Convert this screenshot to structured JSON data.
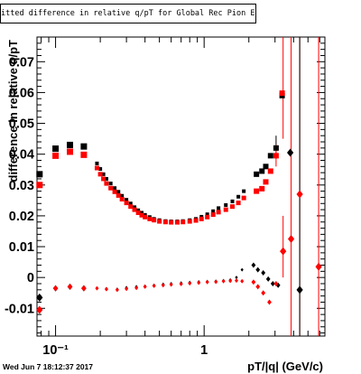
{
  "chart_data": {
    "type": "scatter",
    "title": "itted difference in relative q/pT  for Global Rec Pion EtapT",
    "xlabel": "pT/|q| (GeV/c)",
    "ylabel": "difference in relative q/pT",
    "x_scale": "log",
    "xlim": [
      0.075,
      6.5
    ],
    "ylim": [
      -0.019,
      0.078
    ],
    "x_ticks": [
      {
        "v": 0.1,
        "label": "10⁻¹"
      },
      {
        "v": 1,
        "label": "1"
      }
    ],
    "y_ticks": [
      -0.01,
      0,
      0.01,
      0.02,
      0.03,
      0.04,
      0.05,
      0.06,
      0.07
    ],
    "y_tick_labels": [
      "-0.01",
      "0",
      "0.01",
      "0.02",
      "0.03",
      "0.04",
      "0.05",
      "0.06",
      "0.07"
    ],
    "grid": false,
    "series": [
      {
        "color": "#000000",
        "marker": "square",
        "size": 7,
        "points": [
          [
            0.078,
            0.0335
          ],
          [
            0.1,
            0.0418
          ],
          [
            0.125,
            0.043
          ],
          [
            0.155,
            0.0425
          ]
        ]
      },
      {
        "color": "#000000",
        "marker": "square",
        "size": 4,
        "points": [
          [
            0.19,
            0.037
          ],
          [
            0.2,
            0.0352
          ],
          [
            0.21,
            0.0335
          ],
          [
            0.22,
            0.032
          ],
          [
            0.235,
            0.0305
          ],
          [
            0.25,
            0.029
          ],
          [
            0.265,
            0.0278
          ],
          [
            0.28,
            0.0265
          ],
          [
            0.3,
            0.0252
          ],
          [
            0.32,
            0.024
          ],
          [
            0.34,
            0.0228
          ],
          [
            0.36,
            0.0218
          ],
          [
            0.38,
            0.021
          ],
          [
            0.4,
            0.0203
          ],
          [
            0.43,
            0.0196
          ],
          [
            0.46,
            0.019
          ],
          [
            0.5,
            0.0186
          ],
          [
            0.55,
            0.0183
          ],
          [
            0.6,
            0.0182
          ],
          [
            0.66,
            0.0182
          ],
          [
            0.72,
            0.0183
          ],
          [
            0.8,
            0.0186
          ],
          [
            0.88,
            0.019
          ],
          [
            0.96,
            0.0197
          ],
          [
            1.05,
            0.0205
          ],
          [
            1.15,
            0.0215
          ],
          [
            1.25,
            0.0225
          ],
          [
            1.4,
            0.0235
          ],
          [
            1.55,
            0.0247
          ],
          [
            1.7,
            0.0262
          ],
          [
            1.85,
            0.028
          ]
        ]
      },
      {
        "color": "#000000",
        "marker": "square",
        "size": 6,
        "points": [
          [
            2.25,
            0.0335
          ],
          [
            2.45,
            0.0345
          ],
          [
            2.6,
            0.036
          ],
          [
            2.8,
            0.0395
          ],
          [
            3.05,
            0.042
          ],
          [
            3.35,
            0.059
          ]
        ]
      },
      {
        "color": "#000000",
        "marker": "diamond",
        "size": 9,
        "points": [
          [
            0.078,
            -0.0065
          ],
          [
            3.8,
            0.0405
          ],
          [
            4.4,
            -0.004
          ]
        ]
      },
      {
        "color": "#000000",
        "marker": "diamond",
        "size": 7,
        "points": [
          [
            0.1,
            -0.0035
          ],
          [
            0.125,
            -0.003
          ],
          [
            0.155,
            -0.0035
          ]
        ]
      },
      {
        "color": "#000000",
        "marker": "diamond",
        "size": 4,
        "points": [
          [
            0.19,
            -0.0035
          ],
          [
            0.22,
            -0.0036
          ],
          [
            0.26,
            -0.0038
          ],
          [
            0.3,
            -0.0033
          ],
          [
            0.35,
            -0.003
          ],
          [
            0.4,
            -0.0028
          ],
          [
            0.46,
            -0.0025
          ],
          [
            0.53,
            -0.0022
          ],
          [
            0.6,
            -0.002
          ],
          [
            0.7,
            -0.0018
          ],
          [
            0.8,
            -0.0016
          ],
          [
            0.92,
            -0.0014
          ],
          [
            1.05,
            -0.0013
          ],
          [
            1.2,
            -0.0012
          ],
          [
            1.35,
            -0.001
          ],
          [
            1.5,
            -0.0008
          ],
          [
            1.65,
            0
          ],
          [
            1.8,
            0.0025
          ]
        ]
      },
      {
        "color": "#000000",
        "marker": "diamond",
        "size": 6,
        "points": [
          [
            2.15,
            0.004
          ],
          [
            2.3,
            0.0025
          ],
          [
            2.5,
            0.0015
          ],
          [
            2.7,
            -0.0005
          ],
          [
            2.9,
            -0.002
          ],
          [
            3.15,
            -0.0025
          ],
          [
            3.4,
            0.0085
          ]
        ]
      },
      {
        "color": "#ff0000",
        "marker": "square",
        "size": 7,
        "points": [
          [
            0.078,
            0.03
          ],
          [
            0.1,
            0.0395
          ],
          [
            0.125,
            0.0408
          ],
          [
            0.155,
            0.0398
          ]
        ]
      },
      {
        "color": "#ff0000",
        "marker": "square",
        "size": 5,
        "points": [
          [
            0.19,
            0.0355
          ],
          [
            0.2,
            0.0335
          ],
          [
            0.21,
            0.032
          ],
          [
            0.22,
            0.0305
          ],
          [
            0.235,
            0.029
          ],
          [
            0.25,
            0.0278
          ],
          [
            0.265,
            0.0266
          ],
          [
            0.28,
            0.0254
          ],
          [
            0.3,
            0.0242
          ],
          [
            0.32,
            0.023
          ],
          [
            0.34,
            0.022
          ],
          [
            0.36,
            0.021
          ],
          [
            0.38,
            0.0202
          ],
          [
            0.4,
            0.0196
          ],
          [
            0.43,
            0.019
          ],
          [
            0.46,
            0.0186
          ],
          [
            0.5,
            0.0182
          ],
          [
            0.55,
            0.018
          ],
          [
            0.6,
            0.0179
          ],
          [
            0.66,
            0.0179
          ],
          [
            0.72,
            0.018
          ],
          [
            0.8,
            0.0182
          ],
          [
            0.88,
            0.0185
          ],
          [
            0.96,
            0.019
          ],
          [
            1.05,
            0.0196
          ],
          [
            1.15,
            0.0204
          ],
          [
            1.25,
            0.0212
          ],
          [
            1.4,
            0.022
          ],
          [
            1.55,
            0.023
          ],
          [
            1.7,
            0.0242
          ],
          [
            1.85,
            0.0258
          ]
        ]
      },
      {
        "color": "#ff0000",
        "marker": "square",
        "size": 6,
        "points": [
          [
            2.25,
            0.028
          ],
          [
            2.45,
            0.0288
          ],
          [
            2.6,
            0.031
          ],
          [
            2.8,
            0.0345
          ],
          [
            3.05,
            0.0395
          ],
          [
            3.35,
            0.0598
          ]
        ]
      },
      {
        "color": "#ff0000",
        "marker": "diamond",
        "size": 9,
        "points": [
          [
            0.078,
            -0.0105
          ],
          [
            3.4,
            0.0085
          ],
          [
            3.85,
            0.0125
          ],
          [
            4.4,
            0.027
          ],
          [
            5.9,
            0.0035
          ]
        ]
      },
      {
        "color": "#ff0000",
        "marker": "diamond",
        "size": 7,
        "points": [
          [
            0.1,
            -0.0035
          ],
          [
            0.125,
            -0.003
          ],
          [
            0.155,
            -0.0035
          ]
        ]
      },
      {
        "color": "#ff0000",
        "marker": "diamond",
        "size": 5,
        "points": [
          [
            0.19,
            -0.0035
          ],
          [
            0.22,
            -0.0038
          ],
          [
            0.26,
            -0.004
          ],
          [
            0.3,
            -0.0037
          ],
          [
            0.35,
            -0.0034
          ],
          [
            0.4,
            -0.003
          ],
          [
            0.46,
            -0.0027
          ],
          [
            0.53,
            -0.0025
          ],
          [
            0.6,
            -0.0023
          ],
          [
            0.7,
            -0.0021
          ],
          [
            0.8,
            -0.0019
          ],
          [
            0.92,
            -0.0017
          ],
          [
            1.05,
            -0.0015
          ],
          [
            1.2,
            -0.0014
          ],
          [
            1.35,
            -0.0012
          ],
          [
            1.5,
            -0.0011
          ],
          [
            1.65,
            -0.001
          ],
          [
            1.8,
            -0.0012
          ]
        ]
      },
      {
        "color": "#ff0000",
        "marker": "diamond",
        "size": 6,
        "points": [
          [
            2.15,
            -0.0015
          ],
          [
            2.3,
            -0.003
          ],
          [
            2.5,
            -0.005
          ],
          [
            2.75,
            -0.008
          ],
          [
            3.05,
            -0.002
          ]
        ]
      }
    ],
    "error_bars": [
      {
        "x": 0.1,
        "y0": 0.0415,
        "y1": 0.0419,
        "color": "#000000"
      },
      {
        "x": 3.05,
        "y0": 0.0385,
        "y1": 0.046,
        "color": "#000000"
      },
      {
        "x": 3.05,
        "y0": 0.036,
        "y1": 0.043,
        "color": "#ff0000"
      },
      {
        "x": 3.4,
        "y0": 0.045,
        "y1": 0.078,
        "color": "#ff0000"
      },
      {
        "x": 3.4,
        "y0": 0.0,
        "y1": 0.02,
        "color": "#ff0000"
      },
      {
        "x": 3.85,
        "y0": -0.019,
        "y1": 0.078,
        "color": "#ff0000"
      },
      {
        "x": 4.4,
        "y0": -0.019,
        "y1": 0.078,
        "color": "#ff0000"
      },
      {
        "x": 5.9,
        "y0": -0.019,
        "y1": 0.078,
        "color": "#ff0000"
      },
      {
        "x": 4.4,
        "y0": -0.019,
        "y1": 0.078,
        "color": "#000000"
      }
    ]
  },
  "footer_text": "Wed Jun  7 18:12:37 2017"
}
